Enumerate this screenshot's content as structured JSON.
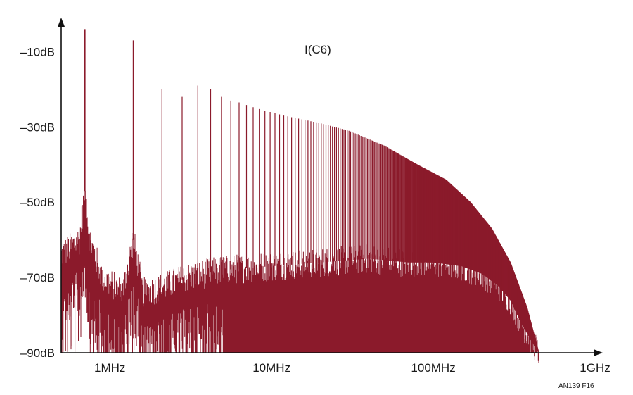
{
  "chart_data": {
    "type": "line",
    "title": "",
    "trace_label": "I(C6)",
    "figure_id": "AN139 F16",
    "xlabel": "",
    "ylabel": "",
    "x_scale": "log",
    "xlim": [
      500000,
      1000000000
    ],
    "ylim": [
      -90,
      0
    ],
    "x_ticks": [
      {
        "value": 1000000,
        "label": "1MHz"
      },
      {
        "value": 10000000,
        "label": "10MHz"
      },
      {
        "value": 100000000,
        "label": "100MHz"
      },
      {
        "value": 1000000000,
        "label": "1GHz"
      }
    ],
    "y_ticks": [
      {
        "value": -10,
        "label": "–10dB"
      },
      {
        "value": -30,
        "label": "–30dB"
      },
      {
        "value": -50,
        "label": "–50dB"
      },
      {
        "value": -70,
        "label": "–70dB"
      },
      {
        "value": -90,
        "label": "–90dB"
      }
    ],
    "grid": false,
    "series": [
      {
        "color": "#8b1a2b",
        "harmonic_peaks": {
          "x": [
            700000,
            1400000,
            2100000,
            2800000,
            3500000,
            4200000,
            4900000,
            5600000
          ],
          "y": [
            -4,
            -7,
            -20,
            -22,
            -19,
            -20,
            -22,
            -23
          ]
        },
        "envelope_peaks": {
          "x": [
            5000000,
            8000000,
            12000000,
            20000000,
            30000000,
            50000000,
            80000000,
            120000000,
            170000000,
            230000000,
            300000000,
            380000000,
            450000000
          ],
          "y": [
            -22,
            -25,
            -27,
            -29,
            -31,
            -35,
            -40,
            -44,
            -50,
            -57,
            -66,
            -78,
            -90
          ]
        },
        "floor_profile": {
          "x": [
            500000,
            650000,
            700000,
            750000,
            900000,
            1200000,
            1400000,
            1600000,
            2000000,
            3000000,
            5000000,
            10000000,
            20000000,
            40000000,
            70000000,
            100000000,
            150000000,
            200000000,
            250000000,
            300000000,
            350000000,
            420000000,
            450000000
          ],
          "y": [
            -64,
            -60,
            -47,
            -60,
            -70,
            -74,
            -60,
            -74,
            -73,
            -70,
            -68,
            -67,
            -66,
            -65,
            -66,
            -66,
            -67,
            -69,
            -72,
            -76,
            -82,
            -88,
            -90
          ]
        }
      }
    ]
  }
}
